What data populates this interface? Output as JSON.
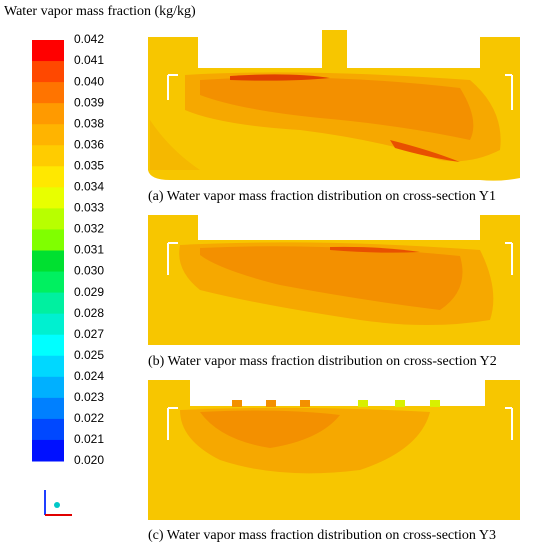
{
  "legend": {
    "title": "Water vapor mass fraction (kg/kg)",
    "labels": [
      "0.042",
      "0.041",
      "0.040",
      "0.039",
      "0.038",
      "0.036",
      "0.035",
      "0.034",
      "0.033",
      "0.032",
      "0.031",
      "0.030",
      "0.029",
      "0.028",
      "0.027",
      "0.025",
      "0.024",
      "0.023",
      "0.022",
      "0.021",
      "0.020"
    ],
    "colors": [
      "#ff0000",
      "#ff4800",
      "#ff7400",
      "#ff9a00",
      "#ffb400",
      "#ffcc00",
      "#ffe800",
      "#e8ff00",
      "#b8ff00",
      "#80ff00",
      "#00e030",
      "#00f060",
      "#00f0a0",
      "#00f0d0",
      "#00ffff",
      "#00d8ff",
      "#00b0ff",
      "#0080ff",
      "#0048ff",
      "#0010ff"
    ]
  },
  "panels": [
    {
      "caption": "(a) Water vapor mass fraction distribution on cross-section Y1"
    },
    {
      "caption": "(b) Water vapor mass fraction distribution on cross-section Y2"
    },
    {
      "caption": "(c) Water vapor mass fraction distribution on cross-section Y3"
    }
  ]
}
